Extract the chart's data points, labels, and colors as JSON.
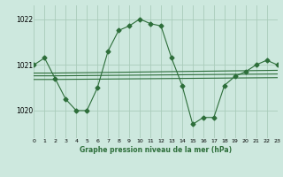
{
  "background_color": "#cde8de",
  "grid_color": "#aaccbb",
  "line_color": "#2d6e3a",
  "title": "Graphe pression niveau de la mer (hPa)",
  "xlim": [
    0,
    23
  ],
  "ylim": [
    1019.4,
    1022.3
  ],
  "yticks": [
    1020,
    1021,
    1022
  ],
  "xtick_labels": [
    "0",
    "1",
    "2",
    "3",
    "4",
    "5",
    "6",
    "7",
    "8",
    "9",
    "10",
    "11",
    "12",
    "13",
    "14",
    "15",
    "16",
    "17",
    "18",
    "19",
    "20",
    "21",
    "22",
    "23"
  ],
  "series": [
    {
      "x": [
        0,
        1,
        2,
        3,
        4,
        5,
        6,
        7,
        8,
        9,
        10,
        11,
        12,
        13,
        14,
        15,
        16,
        17,
        18,
        19,
        20,
        21,
        22,
        23
      ],
      "y": [
        1021.0,
        1021.15,
        1020.7,
        1020.25,
        1020.0,
        1020.0,
        1020.5,
        1021.3,
        1021.75,
        1021.85,
        1022.0,
        1021.9,
        1021.85,
        1021.15,
        1020.55,
        1019.7,
        1019.85,
        1019.85,
        1020.55,
        1020.75,
        1020.85,
        1021.0,
        1021.1,
        1021.0
      ],
      "marker": "D",
      "markersize": 2.5
    },
    {
      "x": [
        0,
        2,
        23
      ],
      "y": [
        1020.82,
        1020.82,
        1020.88
      ],
      "marker": null,
      "markersize": 0
    },
    {
      "x": [
        0,
        2,
        23
      ],
      "y": [
        1020.76,
        1020.76,
        1020.8
      ],
      "marker": null,
      "markersize": 0
    },
    {
      "x": [
        0,
        2,
        23
      ],
      "y": [
        1020.68,
        1020.68,
        1020.72
      ],
      "marker": null,
      "markersize": 0
    }
  ]
}
